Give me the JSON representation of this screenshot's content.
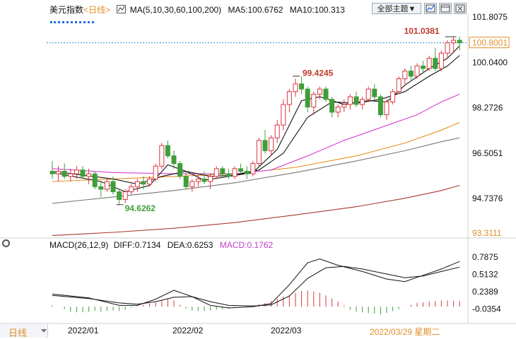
{
  "header": {
    "symbol": "美元指数",
    "period_tag": "<日线>",
    "ma_label": "MA(5,10,30,60,100,200)",
    "ma5": "MA5:100.6762",
    "ma10": "MA10:100.313",
    "theme_button": "全部主题▼",
    "icon_names": [
      "chart-style-icon",
      "expand-icon",
      "close-icon"
    ]
  },
  "macd_header": {
    "label": "MACD(26,12,9)",
    "diff": "DIFF:0.7134",
    "dea": "DEA:0.6253",
    "macd": "MACD:0.1762"
  },
  "footer": {
    "period_button": "日线",
    "dates": [
      "2022/01",
      "2022/02",
      "2022/03"
    ],
    "cursor_date": "2022/03/29 星期二"
  },
  "colors": {
    "up": "#d8363f",
    "down": "#3f9e3a",
    "ma5": "#111111",
    "ma10": "#111111",
    "ma30": "#d93dd0",
    "ma60": "#e5901f",
    "ma100": "#777777",
    "ma200": "#a83a2c",
    "price_line": "#2e86c1",
    "diff": "#111111",
    "dea": "#111111"
  },
  "chart_data": {
    "type": "candlestick",
    "main_axis": {
      "ylim": [
        93.3111,
        101.8075
      ],
      "ticks": [
        "101.8075",
        "100.0400",
        "98.2726",
        "96.5051",
        "94.7376"
      ],
      "min_label": "93.3111",
      "current_price": "100.8001",
      "high_label": "101.0381",
      "mid_high_label": "99.4245",
      "low_label": "94.6262"
    },
    "candles": [
      [
        95.8,
        96.2,
        95.5,
        95.7
      ],
      [
        95.7,
        96.0,
        95.4,
        95.8
      ],
      [
        95.8,
        96.1,
        95.5,
        95.6
      ],
      [
        95.6,
        95.9,
        95.4,
        95.7
      ],
      [
        95.7,
        96.0,
        95.5,
        95.85
      ],
      [
        95.85,
        96.0,
        95.5,
        95.6
      ],
      [
        95.6,
        95.9,
        95.3,
        95.7
      ],
      [
        95.7,
        95.8,
        95.1,
        95.2
      ],
      [
        95.2,
        95.4,
        94.8,
        95.1
      ],
      [
        95.1,
        95.5,
        95.0,
        95.4
      ],
      [
        95.4,
        95.6,
        94.9,
        95.0
      ],
      [
        95.0,
        95.1,
        94.5,
        94.7
      ],
      [
        94.7,
        95.1,
        94.55,
        95.0
      ],
      [
        95.0,
        95.3,
        94.9,
        95.2
      ],
      [
        95.2,
        95.5,
        95.0,
        95.4
      ],
      [
        95.4,
        95.6,
        95.1,
        95.3
      ],
      [
        95.3,
        95.6,
        95.2,
        95.5
      ],
      [
        95.5,
        96.1,
        95.4,
        96.0
      ],
      [
        96.0,
        96.9,
        95.9,
        96.8
      ],
      [
        96.8,
        97.0,
        96.3,
        96.4
      ],
      [
        96.4,
        96.6,
        95.9,
        96.1
      ],
      [
        96.1,
        96.2,
        95.5,
        95.6
      ],
      [
        95.6,
        95.8,
        95.1,
        95.2
      ],
      [
        95.2,
        95.5,
        95.0,
        95.4
      ],
      [
        95.4,
        95.7,
        95.2,
        95.5
      ],
      [
        95.5,
        95.8,
        95.3,
        95.4
      ],
      [
        95.4,
        95.7,
        95.1,
        95.6
      ],
      [
        95.6,
        96.0,
        95.5,
        95.9
      ],
      [
        95.9,
        96.0,
        95.6,
        95.7
      ],
      [
        95.7,
        95.9,
        95.5,
        95.6
      ],
      [
        95.6,
        96.0,
        95.5,
        95.9
      ],
      [
        95.9,
        96.1,
        95.7,
        95.8
      ],
      [
        95.8,
        96.0,
        95.5,
        95.7
      ],
      [
        95.7,
        96.2,
        95.6,
        96.1
      ],
      [
        96.1,
        97.1,
        96.0,
        97.0
      ],
      [
        97.0,
        97.4,
        96.5,
        96.6
      ],
      [
        96.6,
        97.2,
        96.4,
        97.1
      ],
      [
        97.1,
        97.8,
        96.9,
        97.6
      ],
      [
        97.6,
        98.6,
        97.4,
        98.4
      ],
      [
        98.4,
        99.0,
        98.1,
        98.9
      ],
      [
        98.9,
        99.4,
        98.7,
        99.2
      ],
      [
        99.2,
        99.5,
        98.8,
        99.0
      ],
      [
        99.0,
        99.1,
        98.1,
        98.3
      ],
      [
        98.3,
        98.9,
        98.0,
        98.8
      ],
      [
        98.8,
        99.1,
        98.6,
        99.0
      ],
      [
        99.0,
        99.1,
        98.5,
        98.6
      ],
      [
        98.6,
        98.7,
        97.9,
        98.1
      ],
      [
        98.1,
        98.4,
        97.9,
        98.3
      ],
      [
        98.3,
        98.6,
        98.1,
        98.4
      ],
      [
        98.4,
        98.8,
        98.2,
        98.7
      ],
      [
        98.7,
        98.9,
        98.3,
        98.4
      ],
      [
        98.4,
        98.7,
        98.2,
        98.6
      ],
      [
        98.6,
        99.1,
        98.5,
        99.0
      ],
      [
        99.0,
        99.2,
        98.6,
        98.7
      ],
      [
        98.7,
        98.8,
        97.9,
        98.0
      ],
      [
        98.0,
        98.6,
        97.8,
        98.5
      ],
      [
        98.5,
        99.0,
        98.4,
        98.9
      ],
      [
        98.9,
        99.5,
        98.8,
        99.4
      ],
      [
        99.4,
        99.8,
        99.2,
        99.7
      ],
      [
        99.7,
        99.9,
        99.3,
        99.5
      ],
      [
        99.5,
        100.0,
        99.4,
        99.9
      ],
      [
        99.9,
        100.1,
        99.6,
        99.8
      ],
      [
        99.8,
        100.3,
        99.7,
        100.2
      ],
      [
        100.2,
        100.6,
        99.7,
        99.8
      ],
      [
        99.8,
        100.5,
        99.7,
        100.4
      ],
      [
        100.4,
        100.9,
        100.2,
        100.8
      ],
      [
        100.8,
        101.04,
        100.4,
        100.9
      ],
      [
        100.9,
        101.04,
        100.5,
        100.8
      ]
    ],
    "ma_lines": {
      "ma5": [
        [
          0,
          95.75
        ],
        [
          8,
          95.4
        ],
        [
          12,
          95.0
        ],
        [
          16,
          95.25
        ],
        [
          19,
          96.05
        ],
        [
          22,
          95.8
        ],
        [
          25,
          95.45
        ],
        [
          29,
          95.6
        ],
        [
          33,
          95.75
        ],
        [
          37,
          96.65
        ],
        [
          41,
          98.55
        ],
        [
          44,
          98.7
        ],
        [
          48,
          98.4
        ],
        [
          52,
          98.55
        ],
        [
          55,
          98.5
        ],
        [
          58,
          99.15
        ],
        [
          62,
          99.8
        ],
        [
          65,
          100.2
        ],
        [
          67,
          100.68
        ]
      ],
      "ma10": [
        [
          0,
          95.8
        ],
        [
          10,
          95.5
        ],
        [
          14,
          95.3
        ],
        [
          18,
          95.6
        ],
        [
          22,
          95.8
        ],
        [
          26,
          95.6
        ],
        [
          30,
          95.65
        ],
        [
          34,
          95.85
        ],
        [
          38,
          96.5
        ],
        [
          42,
          97.9
        ],
        [
          46,
          98.5
        ],
        [
          50,
          98.45
        ],
        [
          54,
          98.6
        ],
        [
          58,
          98.9
        ],
        [
          62,
          99.5
        ],
        [
          65,
          99.9
        ],
        [
          67,
          100.31
        ]
      ],
      "ma30": [
        [
          0,
          95.9
        ],
        [
          10,
          95.75
        ],
        [
          20,
          95.7
        ],
        [
          30,
          95.7
        ],
        [
          36,
          95.85
        ],
        [
          42,
          96.4
        ],
        [
          48,
          97.0
        ],
        [
          54,
          97.5
        ],
        [
          60,
          98.0
        ],
        [
          64,
          98.5
        ],
        [
          67,
          98.8
        ]
      ],
      "ma60": [
        [
          0,
          95.4
        ],
        [
          10,
          95.5
        ],
        [
          20,
          95.6
        ],
        [
          30,
          95.7
        ],
        [
          40,
          95.95
        ],
        [
          50,
          96.4
        ],
        [
          58,
          96.9
        ],
        [
          64,
          97.4
        ],
        [
          67,
          97.7
        ]
      ],
      "ma100": [
        [
          0,
          94.55
        ],
        [
          10,
          94.8
        ],
        [
          20,
          95.05
        ],
        [
          30,
          95.35
        ],
        [
          40,
          95.75
        ],
        [
          50,
          96.2
        ],
        [
          58,
          96.6
        ],
        [
          64,
          96.95
        ],
        [
          67,
          97.1
        ]
      ],
      "ma200": [
        [
          0,
          93.3
        ],
        [
          10,
          93.42
        ],
        [
          20,
          93.58
        ],
        [
          30,
          93.8
        ],
        [
          40,
          94.1
        ],
        [
          50,
          94.42
        ],
        [
          58,
          94.75
        ],
        [
          64,
          95.05
        ],
        [
          67,
          95.25
        ]
      ]
    },
    "macd_axis": {
      "ylim": [
        -0.2,
        0.88
      ],
      "ticks": [
        "0.7875",
        "0.5132",
        "0.2389",
        "-0.0354"
      ]
    },
    "macd_diff": [
      [
        0,
        0.2
      ],
      [
        6,
        0.14
      ],
      [
        11,
        0.02
      ],
      [
        14,
        0.02
      ],
      [
        17,
        0.12
      ],
      [
        20,
        0.26
      ],
      [
        23,
        0.16
      ],
      [
        26,
        0.02
      ],
      [
        29,
        -0.02
      ],
      [
        33,
        0.0
      ],
      [
        36,
        0.05
      ],
      [
        39,
        0.35
      ],
      [
        42,
        0.7
      ],
      [
        44,
        0.76
      ],
      [
        47,
        0.66
      ],
      [
        51,
        0.56
      ],
      [
        55,
        0.44
      ],
      [
        58,
        0.4
      ],
      [
        61,
        0.5
      ],
      [
        64,
        0.6
      ],
      [
        67,
        0.72
      ]
    ],
    "macd_dea": [
      [
        0,
        0.18
      ],
      [
        6,
        0.13
      ],
      [
        11,
        0.06
      ],
      [
        14,
        0.04
      ],
      [
        17,
        0.08
      ],
      [
        20,
        0.15
      ],
      [
        23,
        0.16
      ],
      [
        26,
        0.08
      ],
      [
        29,
        0.02
      ],
      [
        33,
        0.01
      ],
      [
        36,
        0.03
      ],
      [
        39,
        0.17
      ],
      [
        42,
        0.45
      ],
      [
        45,
        0.62
      ],
      [
        48,
        0.64
      ],
      [
        51,
        0.6
      ],
      [
        55,
        0.52
      ],
      [
        58,
        0.46
      ],
      [
        61,
        0.49
      ],
      [
        64,
        0.56
      ],
      [
        67,
        0.63
      ]
    ],
    "macd_hist": [
      0.02,
      0.0,
      -0.04,
      -0.08,
      -0.09,
      -0.09,
      -0.08,
      -0.07,
      -0.08,
      -0.07,
      -0.06,
      -0.07,
      -0.05,
      -0.02,
      0.01,
      0.03,
      0.05,
      0.07,
      0.1,
      0.12,
      0.1,
      0.03,
      -0.03,
      -0.06,
      -0.07,
      -0.07,
      -0.06,
      -0.05,
      -0.04,
      -0.03,
      -0.01,
      0.0,
      0.01,
      0.02,
      0.04,
      0.06,
      0.09,
      0.13,
      0.16,
      0.18,
      0.22,
      0.25,
      0.26,
      0.24,
      0.22,
      0.18,
      0.13,
      0.08,
      0.02,
      -0.05,
      -0.08,
      -0.09,
      -0.1,
      -0.11,
      -0.12,
      -0.1,
      -0.07,
      -0.04,
      0.0,
      0.03,
      0.06,
      0.07,
      0.08,
      0.09,
      0.1,
      0.1,
      0.09,
      0.09
    ]
  }
}
